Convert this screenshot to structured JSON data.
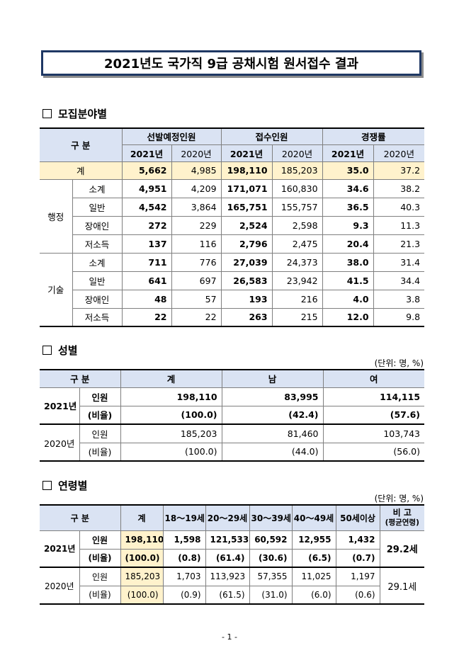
{
  "title": "2021년도 국가직 9급 공채시험 원서접수 결과",
  "section1": {
    "heading": "모집분야별",
    "hdr": {
      "gubun": "구 분",
      "planned": "선발예정인원",
      "applicants": "접수인원",
      "ratio": "경쟁률",
      "y2021": "2021년",
      "y2020": "2020년"
    },
    "total": {
      "label": "계",
      "values": [
        "5,662",
        "4,985",
        "198,110",
        "185,203",
        "35.0",
        "37.2"
      ]
    },
    "groups": [
      {
        "name": "행정",
        "rows": [
          {
            "label": "소계",
            "values": [
              "4,951",
              "4,209",
              "171,071",
              "160,830",
              "34.6",
              "38.2"
            ]
          },
          {
            "label": "일반",
            "values": [
              "4,542",
              "3,864",
              "165,751",
              "155,757",
              "36.5",
              "40.3"
            ]
          },
          {
            "label": "장애인",
            "values": [
              "272",
              "229",
              "2,524",
              "2,598",
              "9.3",
              "11.3"
            ]
          },
          {
            "label": "저소득",
            "values": [
              "137",
              "116",
              "2,796",
              "2,475",
              "20.4",
              "21.3"
            ]
          }
        ]
      },
      {
        "name": "기술",
        "rows": [
          {
            "label": "소계",
            "values": [
              "711",
              "776",
              "27,039",
              "24,373",
              "38.0",
              "31.4"
            ]
          },
          {
            "label": "일반",
            "values": [
              "641",
              "697",
              "26,583",
              "23,942",
              "41.5",
              "34.4"
            ]
          },
          {
            "label": "장애인",
            "values": [
              "48",
              "57",
              "193",
              "216",
              "4.0",
              "3.8"
            ]
          },
          {
            "label": "저소득",
            "values": [
              "22",
              "22",
              "263",
              "215",
              "12.0",
              "9.8"
            ]
          }
        ]
      }
    ]
  },
  "section2": {
    "heading": "성별",
    "unit": "(단위: 명, %)",
    "hdr": {
      "gubun": "구 분",
      "total": "계",
      "male": "남",
      "female": "여"
    },
    "years": [
      {
        "year": "2021년",
        "rows": [
          {
            "label": "인원",
            "values": [
              "198,110",
              "83,995",
              "114,115"
            ]
          },
          {
            "label": "(비율)",
            "values": [
              "(100.0)",
              "(42.4)",
              "(57.6)"
            ]
          }
        ]
      },
      {
        "year": "2020년",
        "rows": [
          {
            "label": "인원",
            "values": [
              "185,203",
              "81,460",
              "103,743"
            ]
          },
          {
            "label": "(비율)",
            "values": [
              "(100.0)",
              "(44.0)",
              "(56.0)"
            ]
          }
        ]
      }
    ]
  },
  "section3": {
    "heading": "연령별",
    "unit": "(단위: 명, %)",
    "hdr": {
      "gubun": "구 분",
      "total": "계",
      "a1": "18～19세",
      "a2": "20～29세",
      "a3": "30～39세",
      "a4": "40～49세",
      "a5": "50세이상",
      "note1": "비 고",
      "note2": "(평균연령)"
    },
    "years": [
      {
        "year": "2021년",
        "avg": "29.2세",
        "rows": [
          {
            "label": "인원",
            "values": [
              "198,110",
              "1,598",
              "121,533",
              "60,592",
              "12,955",
              "1,432"
            ]
          },
          {
            "label": "(비율)",
            "values": [
              "(100.0)",
              "(0.8)",
              "(61.4)",
              "(30.6)",
              "(6.5)",
              "(0.7)"
            ]
          }
        ]
      },
      {
        "year": "2020년",
        "avg": "29.1세",
        "rows": [
          {
            "label": "인원",
            "values": [
              "185,203",
              "1,703",
              "113,923",
              "57,355",
              "11,025",
              "1,197"
            ]
          },
          {
            "label": "(비율)",
            "values": [
              "(100.0)",
              "(0.9)",
              "(61.5)",
              "(31.0)",
              "(6.0)",
              "(0.6)"
            ]
          }
        ]
      }
    ]
  },
  "page_number": "- 1 -"
}
